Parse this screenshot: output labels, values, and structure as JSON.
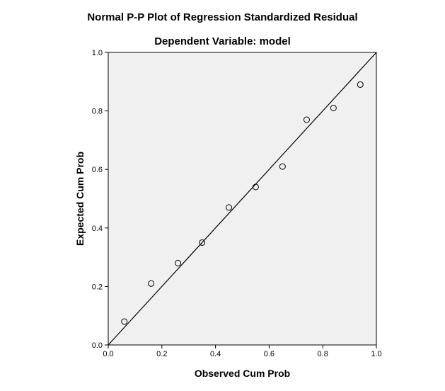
{
  "chart_data": {
    "type": "scatter",
    "title": "Normal P-P Plot of Regression Standardized Residual",
    "subtitle": "Dependent Variable: model",
    "xlabel": "Observed Cum Prob",
    "ylabel": "Expected Cum Prob",
    "xlim": [
      0.0,
      1.0
    ],
    "ylim": [
      0.0,
      1.0
    ],
    "x_ticks": [
      "0.0",
      "0.2",
      "0.4",
      "0.6",
      "0.8",
      "1.0"
    ],
    "y_ticks": [
      "0.0",
      "0.2",
      "0.4",
      "0.6",
      "0.8",
      "1.0"
    ],
    "grid": false,
    "reference_line": {
      "from": [
        0.0,
        0.0
      ],
      "to": [
        1.0,
        1.0
      ]
    },
    "points": [
      {
        "x": 0.06,
        "y": 0.08
      },
      {
        "x": 0.16,
        "y": 0.21
      },
      {
        "x": 0.26,
        "y": 0.28
      },
      {
        "x": 0.35,
        "y": 0.35
      },
      {
        "x": 0.45,
        "y": 0.47
      },
      {
        "x": 0.55,
        "y": 0.54
      },
      {
        "x": 0.65,
        "y": 0.61
      },
      {
        "x": 0.74,
        "y": 0.77
      },
      {
        "x": 0.84,
        "y": 0.81
      },
      {
        "x": 0.94,
        "y": 0.89
      }
    ],
    "colors": {
      "plot_background": "#f0f0f0",
      "frame": "#000000",
      "marker": "#000000"
    }
  }
}
